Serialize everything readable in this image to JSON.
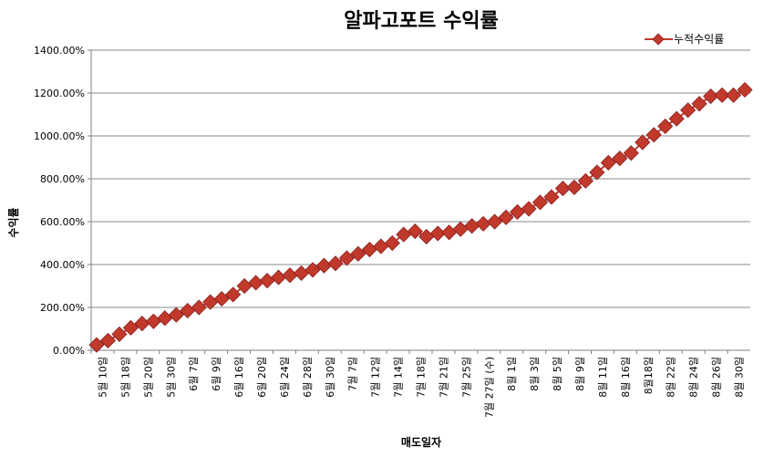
{
  "chart_data": {
    "type": "line",
    "title": "알파고포트 수익률",
    "xlabel": "매도일자",
    "ylabel": "수익률",
    "ylim": [
      0,
      1400
    ],
    "y_tick_step": 200,
    "y_tick_format": "percent_2dp",
    "grid": true,
    "legend_position": "top-right",
    "series": [
      {
        "name": "누적수익률",
        "color": "#c0392b",
        "marker": "diamond",
        "values": [
          25,
          45,
          75,
          105,
          125,
          135,
          150,
          165,
          185,
          200,
          225,
          240,
          260,
          300,
          315,
          325,
          340,
          350,
          360,
          375,
          395,
          405,
          430,
          450,
          470,
          485,
          500,
          540,
          555,
          530,
          545,
          550,
          565,
          580,
          590,
          600,
          620,
          645,
          660,
          690,
          715,
          755,
          760,
          790,
          830,
          875,
          895,
          920,
          970,
          1005,
          1045,
          1080,
          1120,
          1150,
          1185,
          1190,
          1190,
          1215
        ]
      }
    ],
    "x_tick_labels": [
      "5월 10일",
      "5월 18일",
      "5월 20일",
      "5월 30일",
      "6월 7일",
      "6월 9일",
      "6월 16일",
      "6월 20일",
      "6월 24일",
      "6월 28일",
      "6월 30일",
      "7월 7일",
      "7월 12일",
      "7월 14일",
      "7월 18일",
      "7월 21일",
      "7월 25일",
      "7월 27일 (수)",
      "8월 1일",
      "8월 3일",
      "8월 5일",
      "8월 9일",
      "8월 11일",
      "8월 16일",
      "8월18일",
      "8월 22일",
      "8월 24일",
      "8월 26일",
      "8월 30일"
    ]
  }
}
